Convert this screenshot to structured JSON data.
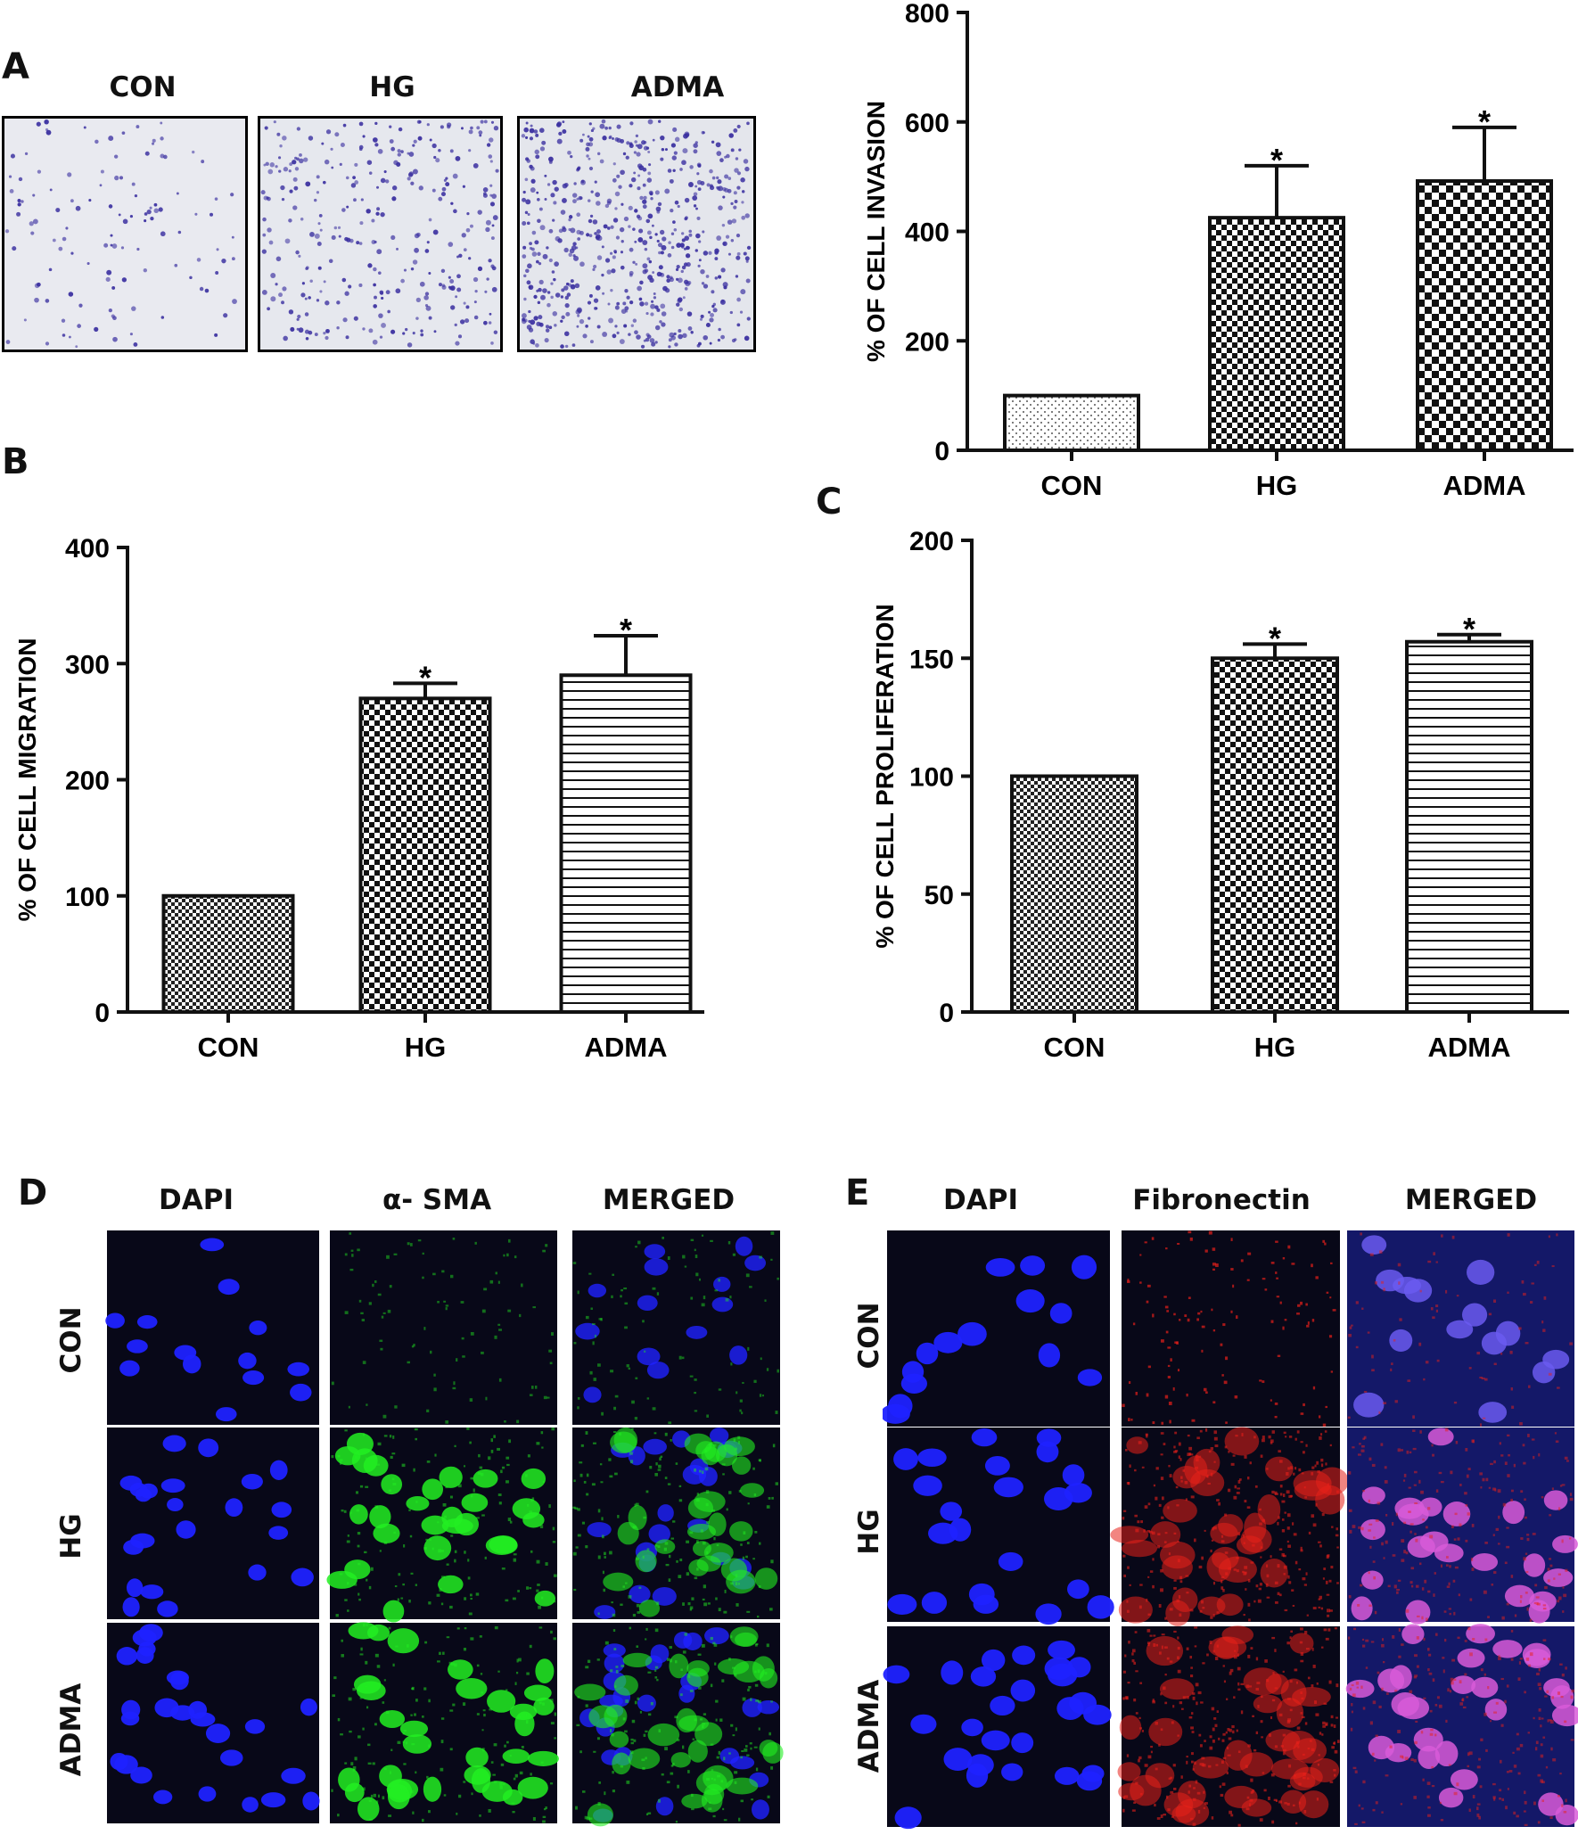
{
  "panels": {
    "A": {
      "letter": "A",
      "photo_labels": [
        "CON",
        "HG",
        "ADMA"
      ]
    },
    "B": {
      "letter": "B"
    },
    "C": {
      "letter": "C"
    },
    "D": {
      "letter": "D",
      "col_labels": [
        "DAPI",
        "α- SMA",
        "MERGED"
      ],
      "row_labels": [
        "CON",
        "HG",
        "ADMA"
      ]
    },
    "E": {
      "letter": "E",
      "col_labels": [
        "DAPI",
        "Fibronectin",
        "MERGED"
      ],
      "row_labels": [
        "CON",
        "HG",
        "ADMA"
      ]
    }
  },
  "chart_data": [
    {
      "id": "invasion",
      "type": "bar",
      "categories": [
        "CON",
        "HG",
        "ADMA"
      ],
      "values": [
        100,
        425,
        492
      ],
      "errors": [
        0,
        95,
        98
      ],
      "significance": [
        "",
        "*",
        "*"
      ],
      "ylabel": "% OF CELL INVASION",
      "ylim": [
        0,
        800
      ],
      "yticks": [
        0,
        200,
        400,
        600,
        800
      ],
      "fill_patterns": [
        "dots",
        "check",
        "check-large"
      ],
      "grid": false
    },
    {
      "id": "migration",
      "type": "bar",
      "categories": [
        "CON",
        "HG",
        "ADMA"
      ],
      "values": [
        100,
        270,
        290
      ],
      "errors": [
        0,
        13,
        34
      ],
      "significance": [
        "",
        "*",
        "*"
      ],
      "ylabel": "% OF CELL MIGRATION",
      "ylim": [
        0,
        400
      ],
      "yticks": [
        0,
        100,
        200,
        300,
        400
      ],
      "fill_patterns": [
        "check-fine",
        "check",
        "hlines"
      ],
      "grid": false
    },
    {
      "id": "proliferation",
      "type": "bar",
      "categories": [
        "CON",
        "HG",
        "ADMA"
      ],
      "values": [
        100,
        150,
        157
      ],
      "errors": [
        0,
        6,
        3
      ],
      "significance": [
        "",
        "*",
        "*"
      ],
      "ylabel": "% OF CELL PROLIFERATION",
      "ylim": [
        0,
        200
      ],
      "yticks": [
        0,
        50,
        100,
        150,
        200
      ],
      "fill_patterns": [
        "check-fine",
        "check",
        "hlines"
      ],
      "grid": false
    }
  ],
  "colors": {
    "axis": "#111111",
    "stain_violet": "#3a2fa0",
    "photo_bg_light": "#e9eaf0",
    "dapi_blue": "#1f22ff",
    "sma_green": "#22ee22",
    "fibronectin_red": "#e8201a",
    "merged_magenta": "#d85ad8",
    "dark_bg": "#080818"
  }
}
